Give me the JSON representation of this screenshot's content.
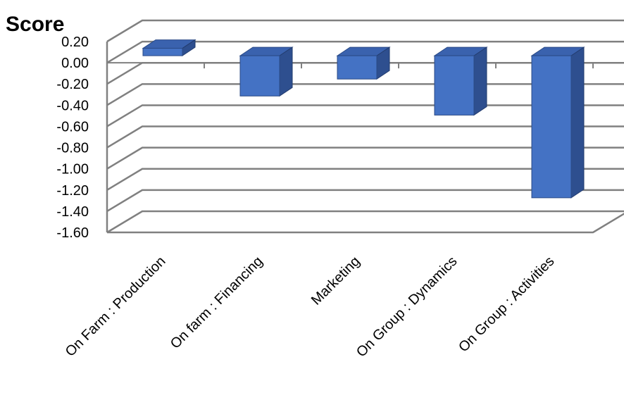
{
  "chart_data": {
    "type": "bar",
    "title": "Score",
    "categories": [
      "On Farm : Production",
      "On farm : Financing",
      "Marketing",
      "On Group : Dynamics",
      "On Group : Activities"
    ],
    "values": [
      0.07,
      -0.38,
      -0.22,
      -0.56,
      -1.34
    ],
    "ylim": [
      -1.6,
      0.2
    ],
    "yticks": [
      "0.20",
      "0.00",
      "-0.20",
      "-0.40",
      "-0.60",
      "-0.80",
      "-1.00",
      "-1.20",
      "-1.40",
      "-1.60"
    ],
    "grid": true,
    "style": "3d-column",
    "colors": {
      "front": "#4472C4",
      "side": "#2E4F8F",
      "top": "#3A62AE",
      "grid": "#808080"
    }
  }
}
